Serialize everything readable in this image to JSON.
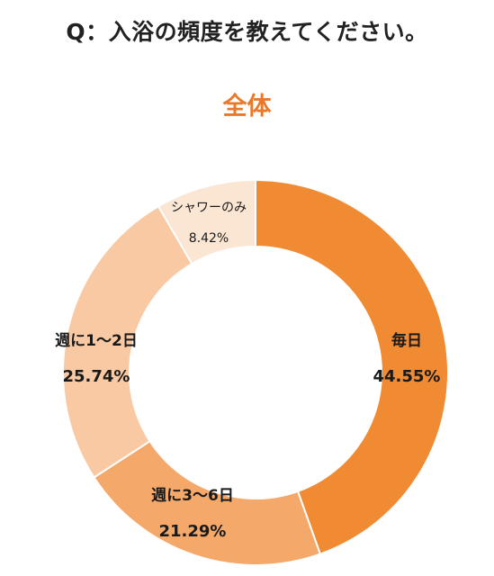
{
  "question": "Q：入浴の頻度を教えてください。",
  "chart_data": {
    "type": "pie",
    "style": "donut",
    "title": "全体",
    "slices": [
      {
        "label": "毎日",
        "value": 44.55,
        "value_label": "44.55%",
        "color": "#f08a33"
      },
      {
        "label": "週に3〜6日",
        "value": 21.29,
        "value_label": "21.29%",
        "color": "#f4a86a"
      },
      {
        "label": "週に1〜2日",
        "value": 25.74,
        "value_label": "25.74%",
        "color": "#f8c9a2"
      },
      {
        "label": "シャワーのみ",
        "value": 8.42,
        "value_label": "8.42%",
        "color": "#fbe5d3"
      }
    ],
    "start_angle_deg": 0,
    "direction": "clockwise"
  }
}
